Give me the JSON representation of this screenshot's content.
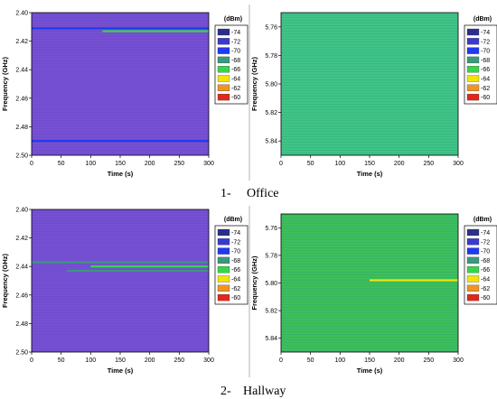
{
  "legend": {
    "title": "(dBm)",
    "levels": [
      "-74",
      "-72",
      "-70",
      "-68",
      "-66",
      "-64",
      "-62",
      "-60"
    ],
    "colors": [
      "#2b2f8c",
      "#3a3ad0",
      "#1f3af0",
      "#3a9a7a",
      "#36d64a",
      "#f3e20e",
      "#f29322",
      "#e2261b"
    ]
  },
  "captions": [
    {
      "num": "1-",
      "label": "Office"
    },
    {
      "num": "2-",
      "label": "Hallway"
    }
  ],
  "chart_data": [
    {
      "type": "heatmap",
      "scenario": "Office",
      "band": "2.4 GHz",
      "xlabel": "Time (s)",
      "ylabel": "Frequency (GHz)",
      "xlim": [
        0,
        300
      ],
      "ylim": [
        2.4,
        2.5
      ],
      "y_inverted": true,
      "xticks": [
        "0",
        "50",
        "100",
        "150",
        "200",
        "250",
        "300"
      ],
      "yticks": [
        "2.40",
        "2.42",
        "2.44",
        "2.46",
        "2.48",
        "2.50"
      ],
      "background_level": "-72",
      "background_color": "#7a4fd6",
      "features": [
        {
          "y": 2.413,
          "x_start": 120,
          "x_end": 300,
          "level": "-66"
        },
        {
          "y": 2.411,
          "x_start": 0,
          "x_end": 300,
          "level": "-70"
        },
        {
          "y": 2.49,
          "x_start": 0,
          "x_end": 300,
          "level": "-70"
        }
      ]
    },
    {
      "type": "heatmap",
      "scenario": "Office",
      "band": "5.8 GHz",
      "xlabel": "Time (s)",
      "ylabel": "Frequency (GHz)",
      "xlim": [
        0,
        300
      ],
      "ylim": [
        5.75,
        5.85
      ],
      "y_inverted": true,
      "xticks": [
        "0",
        "50",
        "100",
        "150",
        "200",
        "250",
        "300"
      ],
      "yticks": [
        "5.76",
        "5.78",
        "5.80",
        "5.82",
        "5.84"
      ],
      "background_level": "-67",
      "background_color": "#3fc08a",
      "features": []
    },
    {
      "type": "heatmap",
      "scenario": "Hallway",
      "band": "2.4 GHz",
      "xlabel": "Time (s)",
      "ylabel": "Frequency (GHz)",
      "xlim": [
        0,
        300
      ],
      "ylim": [
        2.4,
        2.5
      ],
      "y_inverted": true,
      "xticks": [
        "0",
        "50",
        "100",
        "150",
        "200",
        "250",
        "300"
      ],
      "yticks": [
        "2.40",
        "2.42",
        "2.44",
        "2.46",
        "2.48",
        "2.50"
      ],
      "background_level": "-72",
      "background_color": "#7a4fd6",
      "features": [
        {
          "y": 2.437,
          "x_start": 0,
          "x_end": 300,
          "level": "-68"
        },
        {
          "y": 2.44,
          "x_start": 100,
          "x_end": 300,
          "level": "-66"
        },
        {
          "y": 2.443,
          "x_start": 60,
          "x_end": 300,
          "level": "-68"
        }
      ]
    },
    {
      "type": "heatmap",
      "scenario": "Hallway",
      "band": "5.8 GHz",
      "xlabel": "Time (s)",
      "ylabel": "Frequency (GHz)",
      "xlim": [
        0,
        300
      ],
      "ylim": [
        5.75,
        5.85
      ],
      "y_inverted": true,
      "xticks": [
        "0",
        "50",
        "100",
        "150",
        "200",
        "250",
        "300"
      ],
      "yticks": [
        "5.76",
        "5.78",
        "5.80",
        "5.82",
        "5.84"
      ],
      "background_level": "-67",
      "background_color": "#3cc05c",
      "features": [
        {
          "y": 5.798,
          "x_start": 150,
          "x_end": 300,
          "level": "-64"
        }
      ]
    }
  ]
}
